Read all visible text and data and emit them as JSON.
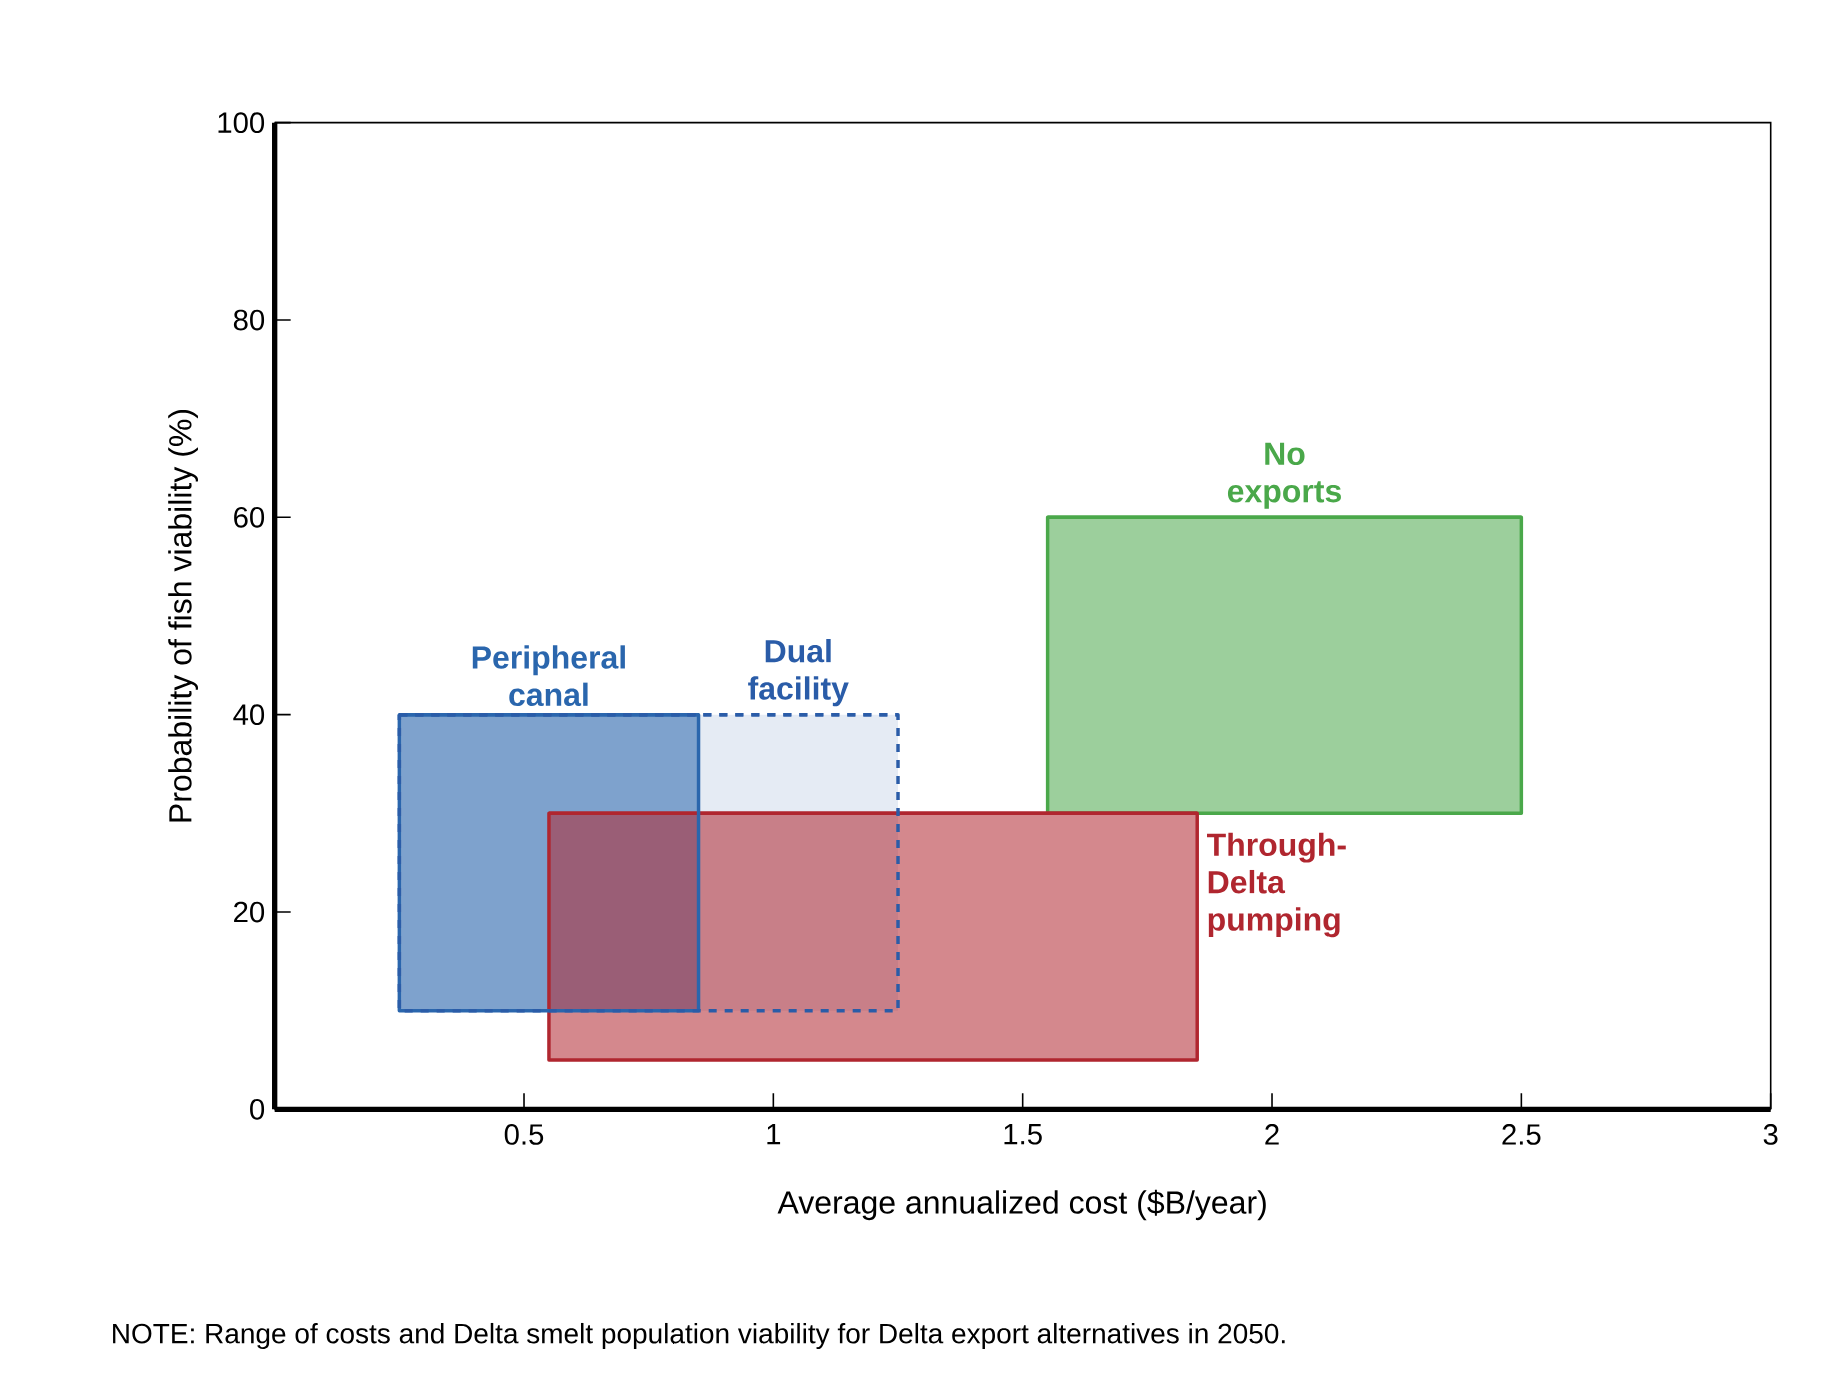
{
  "chart_data": {
    "type": "line",
    "xlabel": "Average annualized cost ($B/year)",
    "ylabel": "Probability of fish viability (%)",
    "xlim": [
      0,
      3
    ],
    "xticks": [
      0.5,
      1,
      1.5,
      2,
      2.5,
      3
    ],
    "ylim": [
      0,
      100
    ],
    "yticks": [
      0,
      20,
      40,
      60,
      80,
      100
    ],
    "series": [
      {
        "name": "Dual facility",
        "type": "line",
        "line_style": "dashed",
        "color": "#2a5ca8",
        "x": [
          0.25,
          1.25
        ],
        "values": [
          40,
          40
        ],
        "lower": [
          10,
          10
        ],
        "upper": [
          40,
          40
        ]
      },
      {
        "name": "Peripheral canal",
        "color": "#2a66ad",
        "x": [
          0.25,
          0.85
        ],
        "values": [
          40,
          40
        ],
        "lower": [
          10,
          10
        ],
        "upper": [
          40,
          40
        ]
      },
      {
        "name": "Through-Delta pumping",
        "color": "#b0262f",
        "x": [
          0.55,
          1.85
        ],
        "values": [
          30,
          30
        ],
        "lower": [
          5,
          5
        ],
        "upper": [
          30,
          30
        ]
      },
      {
        "name": "No exports",
        "color": "#4aa84a",
        "x": [
          1.55,
          2.5
        ],
        "values": [
          60,
          60
        ],
        "lower": [
          30,
          30
        ],
        "upper": [
          60,
          60
        ]
      }
    ],
    "annotations": [
      "NOTE:  Range of costs and Delta smelt population viability for Delta export alternatives in 2050."
    ]
  }
}
